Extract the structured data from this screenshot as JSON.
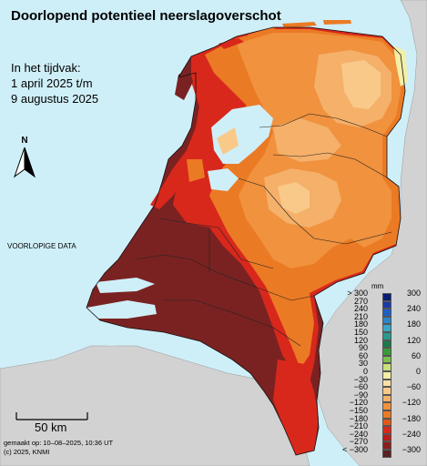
{
  "title": "Doorlopend potentieel neerslagoverschot",
  "period": {
    "line1": "In het tijdvak:",
    "line2": "1 april 2025 t/m",
    "line3": "9 augustus 2025"
  },
  "north_label": "N",
  "preliminary_label": "VOORLOPIGE DATA",
  "scale_label": "50 km",
  "meta": {
    "made": "gemaakt op: 10–08–2025, 10:36 UT",
    "copyright": "(c) 2025, KNMI"
  },
  "legend": {
    "unit": "mm",
    "left_labels": [
      "> 300",
      "270",
      "240",
      "210",
      "180",
      "150",
      "120",
      "90",
      "60",
      "30",
      "0",
      "−30",
      "−60",
      "−90",
      "−120",
      "−150",
      "−180",
      "−210",
      "−240",
      "−270",
      "< −300"
    ],
    "right_labels": [
      "300",
      "240",
      "180",
      "120",
      "60",
      "0",
      "−60",
      "−120",
      "−180",
      "−240",
      "−300"
    ],
    "colors": [
      "#0b1c73",
      "#1c3aa8",
      "#1f5fc0",
      "#2b86c8",
      "#3aa6c6",
      "#2a9a8a",
      "#1a7a4a",
      "#3a9a3a",
      "#7cc04a",
      "#c8e07a",
      "#f3eea8",
      "#fbe0a6",
      "#f9c98a",
      "#f5b06a",
      "#f0923e",
      "#eb7a24",
      "#e05a1a",
      "#d8281c",
      "#b81c1c",
      "#8a1e1e",
      "#5a2222"
    ]
  }
}
